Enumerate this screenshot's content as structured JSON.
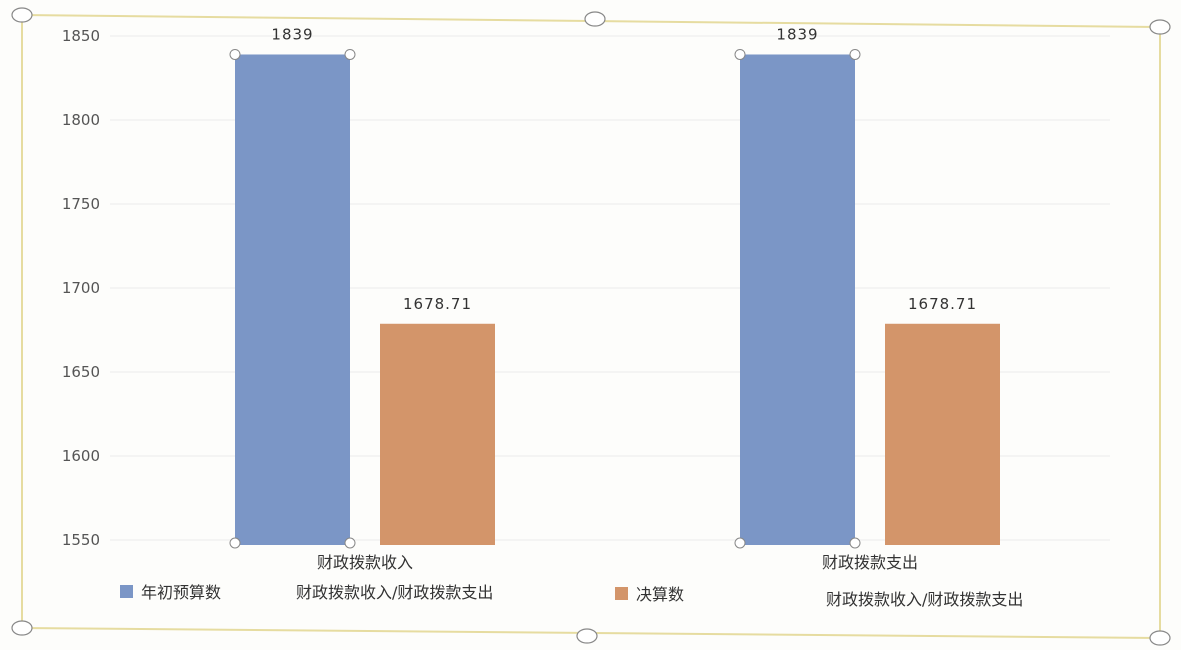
{
  "chart_data": {
    "type": "bar",
    "categories": [
      "财政拨款收入",
      "财政拨款支出"
    ],
    "series": [
      {
        "name": "年初预算数",
        "values": [
          1839,
          1839
        ],
        "data_labels": [
          "1839",
          "1839"
        ],
        "color": "#7b96c6"
      },
      {
        "name": "决算数",
        "values": [
          1678.71,
          1678.71
        ],
        "data_labels": [
          "1678.71",
          "1678.71"
        ],
        "color": "#d3956a"
      }
    ],
    "ylim": [
      1550,
      1850
    ],
    "yticks": [
      1550,
      1600,
      1650,
      1700,
      1750,
      1800,
      1850
    ],
    "grid": true,
    "legend_position": "bottom-left",
    "extra_legend_texts": [
      "财政拨款收入/财政拨款支出",
      "财政拨款收入/财政拨款支出"
    ],
    "colors": {
      "frame": "#e6dca0",
      "tick_text": "#555555",
      "label_text": "#333333",
      "handle": "#888888"
    }
  }
}
